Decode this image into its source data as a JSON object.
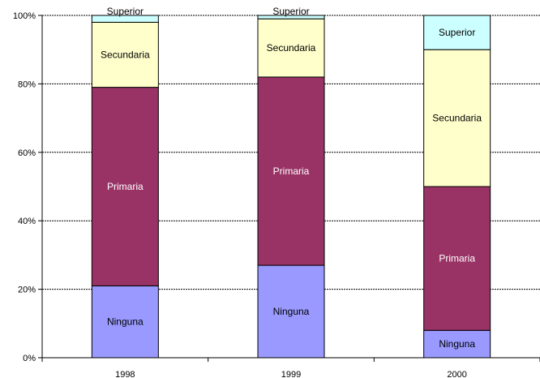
{
  "chart_data": {
    "type": "bar",
    "stacked": true,
    "percent_stacked": true,
    "categories": [
      "1998",
      "1999",
      "2000"
    ],
    "series": [
      {
        "name": "Ninguna",
        "values": [
          21,
          27,
          8
        ]
      },
      {
        "name": "Primaria",
        "values": [
          58,
          55,
          42
        ]
      },
      {
        "name": "Secundaria",
        "values": [
          19,
          17,
          40
        ]
      },
      {
        "name": "Superior",
        "values": [
          2,
          1,
          10
        ]
      }
    ],
    "y_ticks": [
      "0%",
      "20%",
      "40%",
      "60%",
      "80%",
      "100%"
    ],
    "ylim": [
      0,
      100
    ],
    "grid": true,
    "legend": "none",
    "colors": {
      "Ninguna": "#9999ff",
      "Primaria": "#993366",
      "Secundaria": "#ffffcc",
      "Superior": "#ccffff"
    },
    "label_colors": {
      "Ninguna": "#000000",
      "Primaria": "#ffffff",
      "Secundaria": "#000000",
      "Superior": "#000000"
    }
  }
}
